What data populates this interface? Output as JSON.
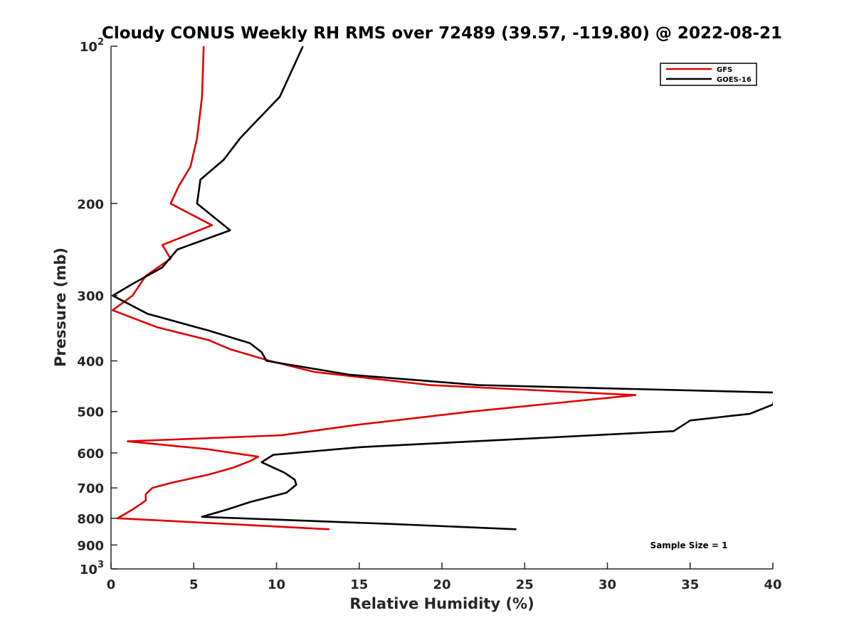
{
  "chart_data": {
    "type": "line",
    "title": "Cloudy CONUS Weekly RH RMS over 72489 (39.57, -119.80) @ 2022-08-21",
    "xlabel": "Relative Humidity (%)",
    "ylabel": "Pressure (mb)",
    "xlim": [
      0,
      40
    ],
    "ylim": [
      100,
      1000
    ],
    "yscale": "log",
    "yreversed": true,
    "x_ticks": [
      0,
      5,
      10,
      15,
      20,
      25,
      30,
      35,
      40
    ],
    "x_tick_labels": [
      "0",
      "5",
      "10",
      "15",
      "20",
      "25",
      "30",
      "35",
      "40"
    ],
    "y_ticks": [
      100,
      200,
      300,
      400,
      500,
      600,
      700,
      800,
      900,
      1000
    ],
    "y_tick_labels": [
      {
        "base": "10",
        "exp": "2"
      },
      {
        "base": "200",
        "exp": ""
      },
      {
        "base": "300",
        "exp": ""
      },
      {
        "base": "400",
        "exp": ""
      },
      {
        "base": "500",
        "exp": ""
      },
      {
        "base": "600",
        "exp": ""
      },
      {
        "base": "700",
        "exp": ""
      },
      {
        "base": "800",
        "exp": ""
      },
      {
        "base": "900",
        "exp": ""
      },
      {
        "base": "10",
        "exp": "3"
      }
    ],
    "grid": false,
    "legend_position": "top-right",
    "annotation": "Sample Size = 1",
    "series": [
      {
        "name": "GFS",
        "color": "#e00000",
        "points": [
          [
            5.6,
            100
          ],
          [
            5.5,
            125
          ],
          [
            5.2,
            150
          ],
          [
            4.8,
            170
          ],
          [
            4.1,
            185
          ],
          [
            3.6,
            200
          ],
          [
            6.1,
            220
          ],
          [
            3.1,
            240
          ],
          [
            3.6,
            255
          ],
          [
            2.1,
            275
          ],
          [
            1.3,
            300
          ],
          [
            0.1,
            320
          ],
          [
            2.8,
            345
          ],
          [
            5.9,
            365
          ],
          [
            7.2,
            380
          ],
          [
            9.6,
            400
          ],
          [
            12.3,
            420
          ],
          [
            19.3,
            445
          ],
          [
            31.7,
            465
          ],
          [
            21.8,
            500
          ],
          [
            14.9,
            530
          ],
          [
            10.3,
            555
          ],
          [
            1.0,
            570
          ],
          [
            5.8,
            590
          ],
          [
            8.9,
            610
          ],
          [
            8.5,
            620
          ],
          [
            7.4,
            640
          ],
          [
            5.9,
            660
          ],
          [
            3.6,
            685
          ],
          [
            2.5,
            700
          ],
          [
            2.1,
            720
          ],
          [
            2.1,
            740
          ],
          [
            1.3,
            770
          ],
          [
            0.4,
            800
          ],
          [
            13.2,
            840
          ]
        ]
      },
      {
        "name": "GOES-16",
        "color": "#000000",
        "points": [
          [
            11.6,
            100
          ],
          [
            10.2,
            125
          ],
          [
            8.7,
            140
          ],
          [
            7.8,
            150
          ],
          [
            6.8,
            165
          ],
          [
            5.4,
            180
          ],
          [
            5.2,
            200
          ],
          [
            7.2,
            225
          ],
          [
            4.0,
            245
          ],
          [
            3.1,
            265
          ],
          [
            1.3,
            285
          ],
          [
            0.1,
            300
          ],
          [
            2.2,
            325
          ],
          [
            5.9,
            350
          ],
          [
            8.4,
            370
          ],
          [
            9.1,
            385
          ],
          [
            9.4,
            400
          ],
          [
            14.4,
            425
          ],
          [
            22.2,
            445
          ],
          [
            40.2,
            460
          ],
          [
            40.0,
            485
          ],
          [
            38.6,
            505
          ],
          [
            35.0,
            520
          ],
          [
            34.0,
            545
          ],
          [
            15.0,
            585
          ],
          [
            9.8,
            605
          ],
          [
            9.1,
            625
          ],
          [
            10.5,
            655
          ],
          [
            11.1,
            675
          ],
          [
            11.2,
            690
          ],
          [
            10.6,
            715
          ],
          [
            8.4,
            745
          ],
          [
            7.0,
            770
          ],
          [
            5.5,
            795
          ],
          [
            16.8,
            820
          ],
          [
            24.5,
            840
          ]
        ]
      }
    ]
  }
}
